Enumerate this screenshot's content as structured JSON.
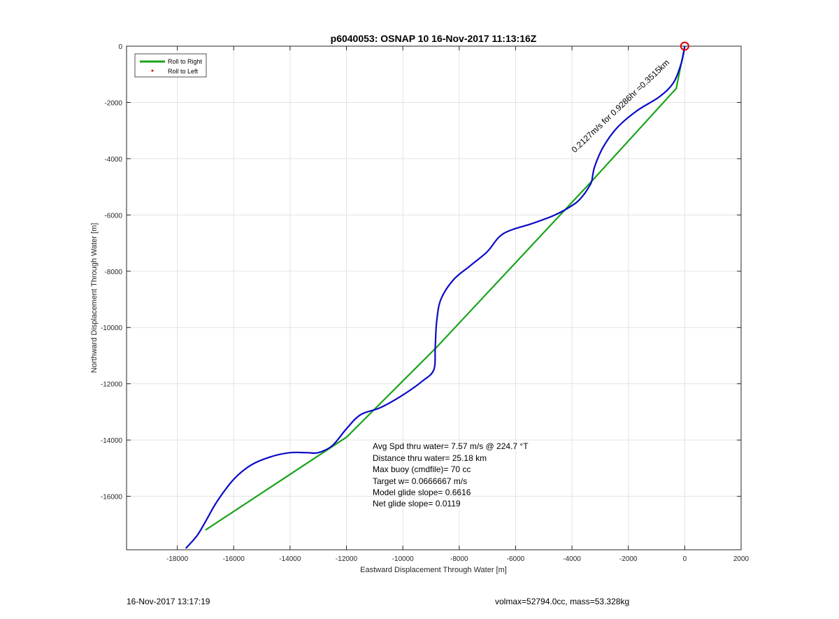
{
  "chart_data": {
    "type": "line",
    "title": "p6040053: OSNAP 10 16-Nov-2017 11:13:16Z",
    "xlabel": "Eastward Displacement Through Water [m]",
    "ylabel": "Northward Displacement Through Water [m]",
    "xlim": [
      -19800,
      2000
    ],
    "ylim": [
      -17900,
      0
    ],
    "xticks": [
      -18000,
      -16000,
      -14000,
      -12000,
      -10000,
      -8000,
      -6000,
      -4000,
      -2000,
      0,
      2000
    ],
    "yticks": [
      0,
      -2000,
      -4000,
      -6000,
      -8000,
      -10000,
      -12000,
      -14000,
      -16000
    ],
    "grid": true,
    "legend_location": "top-left",
    "legend": [
      {
        "label": "Roll to Right",
        "color": "#1aa31a",
        "style": "line"
      },
      {
        "label": "Roll to Left",
        "color": "#e00000",
        "style": "dot"
      }
    ],
    "series": [
      {
        "color": "#1aa31a",
        "x": [
          0,
          -300,
          -3300,
          -8800,
          -12000,
          -17000
        ],
        "y": [
          0,
          -1500,
          -4800,
          -10700,
          -13900,
          -17200
        ]
      },
      {
        "color": "#0a0ac8",
        "x": [
          0,
          -120,
          -400,
          -900,
          -1700,
          -2400,
          -2900,
          -3200,
          -3300,
          -3400,
          -3600,
          -3900,
          -4600,
          -5400,
          -6200,
          -6600,
          -7000,
          -7600,
          -8200,
          -8650,
          -8800,
          -8850,
          -8900,
          -9300,
          -10000,
          -10800,
          -11500,
          -12000,
          -12500,
          -13000,
          -13400,
          -14000,
          -14700,
          -15400,
          -16000,
          -16600,
          -17000,
          -17300,
          -17700
        ],
        "y": [
          0,
          -600,
          -1300,
          -1800,
          -2300,
          -2900,
          -3600,
          -4300,
          -4800,
          -5000,
          -5300,
          -5600,
          -6000,
          -6300,
          -6550,
          -6800,
          -7300,
          -7800,
          -8300,
          -9000,
          -9800,
          -10700,
          -11500,
          -11900,
          -12400,
          -12850,
          -13100,
          -13600,
          -14200,
          -14450,
          -14450,
          -14450,
          -14600,
          -14900,
          -15400,
          -16200,
          -16900,
          -17400,
          -17850
        ]
      }
    ],
    "markers": [
      {
        "name": "surface-marker",
        "x": 0,
        "y": 0,
        "color": "#e00000"
      }
    ],
    "current_annotation": {
      "text": "0.2127m/s for 0.9286hr =0.3515km",
      "start": [
        -3900,
        -3800
      ],
      "end": [
        0,
        -100
      ]
    },
    "stats_lines": [
      "Avg Spd thru water=  7.57 m/s @ 224.7 °T",
      "Distance thru water= 25.18 km",
      "Max buoy (cmdfile)= 70 cc",
      "Target w= 0.0666667 m/s",
      "Model glide slope= 0.6616",
      "Net glide slope= 0.0119"
    ]
  },
  "footer": {
    "timestamp": "16-Nov-2017 13:17:19",
    "volmass": "volmax=52794.0cc, mass=53.328kg"
  }
}
